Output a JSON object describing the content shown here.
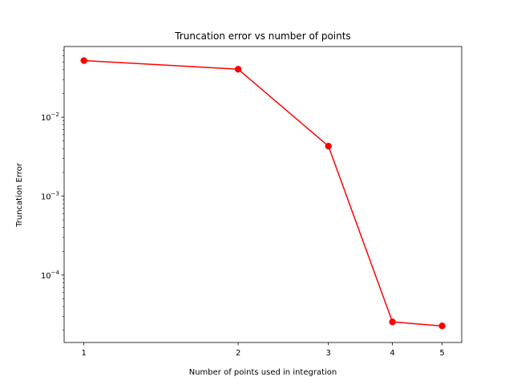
{
  "chart_data": {
    "type": "line",
    "title": "Truncation error vs number of points",
    "xlabel": "Number of points used in integration",
    "ylabel": "Truncation Error",
    "x": [
      1,
      2,
      3,
      4,
      5
    ],
    "x_ticks": [
      "1",
      "2",
      "3",
      "4",
      "5"
    ],
    "x_scale": "log",
    "y_scale": "log",
    "y_ticks": [
      {
        "value": 0.01,
        "base": "10",
        "exp": "−2"
      },
      {
        "value": 0.001,
        "base": "10",
        "exp": "−3"
      },
      {
        "value": 0.0001,
        "base": "10",
        "exp": "−4"
      }
    ],
    "ylim": [
      1.4e-05,
      0.0785
    ],
    "xlim": [
      0.915,
      5.46
    ],
    "series": [
      {
        "values": [
          0.0521,
          0.0405,
          0.0043,
          2.55e-05,
          2.27e-05
        ],
        "color": "#ff0000",
        "marker": "circle"
      }
    ],
    "grid": false,
    "legend": "none"
  }
}
